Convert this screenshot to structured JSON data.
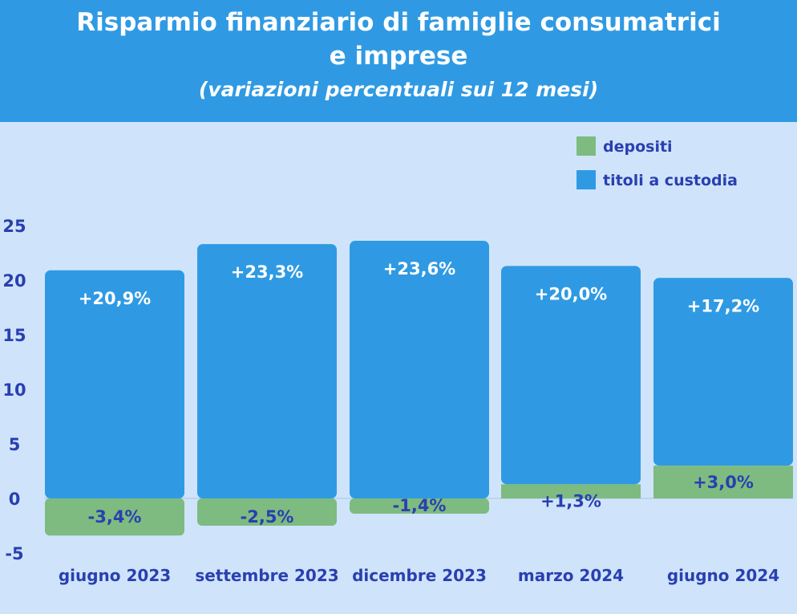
{
  "header": {
    "title_line1": "Risparmio finanziario di famiglie consumatrici",
    "title_line2": "e imprese",
    "subtitle": "(variazioni percentuali sui 12 mesi)"
  },
  "colors": {
    "background": "#cfe4fb",
    "header": "#2f9ae3",
    "titoli": "#2f9ae3",
    "depositi": "#7dbb81",
    "label_dark": "#2a3fb0",
    "label_light": "#ffffff",
    "axis_line": "#a8c3dc"
  },
  "chart_data": {
    "type": "bar",
    "title": "Risparmio finanziario di famiglie consumatrici e imprese",
    "subtitle": "(variazioni percentuali sui 12 mesi)",
    "categories": [
      "giugno 2023",
      "settembre 2023",
      "dicembre 2023",
      "marzo 2024",
      "giugno 2024"
    ],
    "series": [
      {
        "name": "titoli a custodia",
        "values": [
          20.9,
          23.3,
          23.6,
          20.0,
          17.2
        ],
        "labels": [
          "+20,9%",
          "+23,3%",
          "+23,6%",
          "+20,0%",
          "+17,2%"
        ]
      },
      {
        "name": "depositi",
        "values": [
          -3.4,
          -2.5,
          -1.4,
          1.3,
          3.0
        ],
        "labels": [
          "-3,4%",
          "-2,5%",
          "-1,4%",
          "+1,3%",
          "+3,0%"
        ]
      }
    ],
    "yticks": [
      25,
      20,
      15,
      10,
      5,
      0,
      -5
    ],
    "ylim": [
      -5,
      25
    ],
    "grid": true,
    "legend": {
      "position": "top-right",
      "entries": [
        "depositi",
        "titoli a custodia"
      ]
    }
  }
}
